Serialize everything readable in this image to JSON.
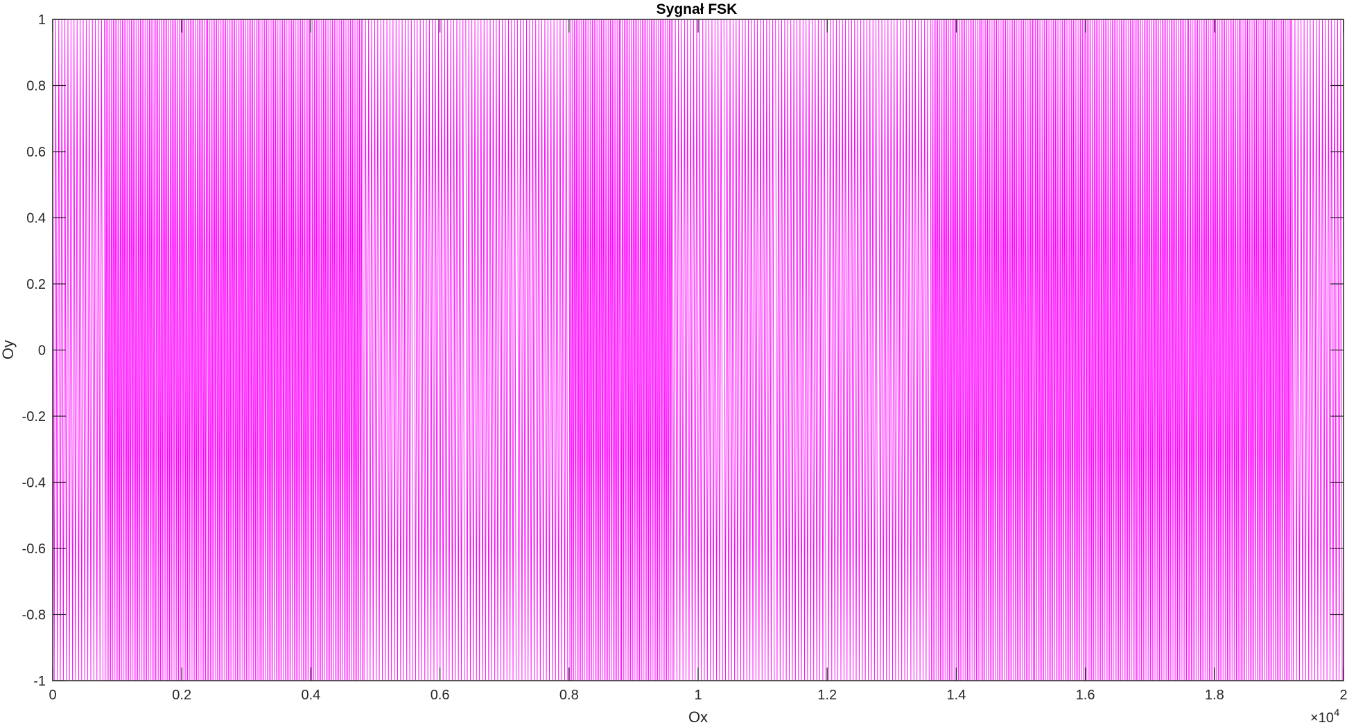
{
  "chart_data": {
    "type": "line",
    "title": "Sygnał FSK",
    "xlabel": "Ox",
    "ylabel": "Oy",
    "xlim": [
      0,
      20000
    ],
    "ylim": [
      -1,
      1
    ],
    "x_exponent_label": "×10",
    "x_exponent_power": "4",
    "x_ticks": [
      0,
      2000,
      4000,
      6000,
      8000,
      10000,
      12000,
      14000,
      16000,
      18000,
      20000
    ],
    "x_tick_labels": [
      "0",
      "0.2",
      "0.4",
      "0.6",
      "0.8",
      "1",
      "1.2",
      "1.4",
      "1.6",
      "1.8",
      "2"
    ],
    "y_ticks": [
      -1,
      -0.8,
      -0.6,
      -0.4,
      -0.2,
      0,
      0.2,
      0.4,
      0.6,
      0.8,
      1
    ],
    "y_tick_labels": [
      "-1",
      "-0.8",
      "-0.6",
      "-0.4",
      "-0.2",
      "0",
      "0.2",
      "0.4",
      "0.6",
      "0.8",
      "1"
    ],
    "grid": false,
    "series": [
      {
        "color": "#ff00ff",
        "waveform": "sine",
        "amplitude": 1,
        "bit_duration": 800,
        "bits": [
          0,
          1,
          1,
          1,
          1,
          1,
          0,
          0,
          0,
          0,
          1,
          1,
          0,
          0,
          0,
          0,
          0,
          1,
          1,
          1,
          1,
          1,
          1,
          1,
          0
        ]
      }
    ]
  }
}
